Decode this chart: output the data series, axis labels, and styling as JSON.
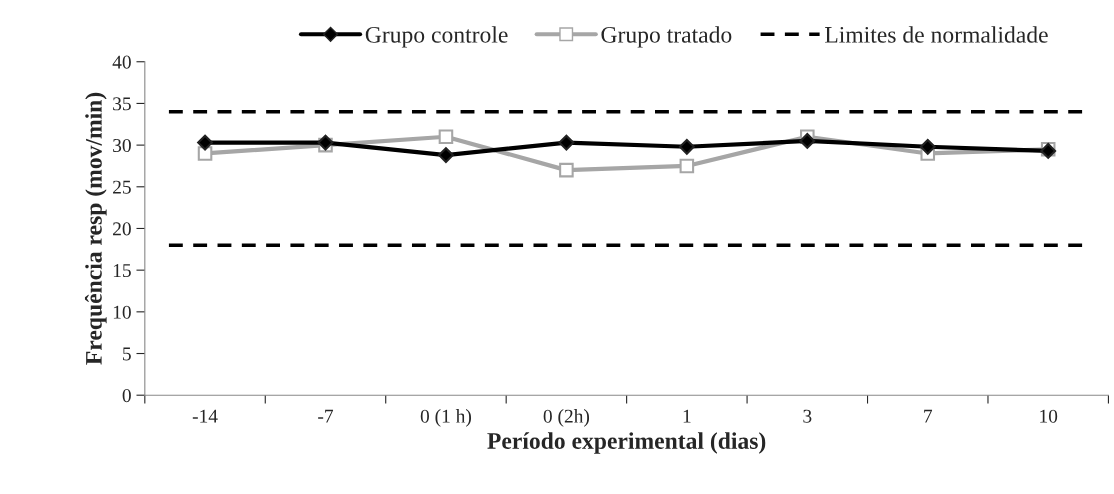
{
  "chart_data": {
    "type": "line",
    "xlabel": "Período experimental (dias)",
    "ylabel": "Frequência resp (mov/min)",
    "categories": [
      "-14",
      "-7",
      "0 (1 h)",
      "0 (2h)",
      "1",
      "3",
      "7",
      "10"
    ],
    "series": [
      {
        "name": "Grupo controle",
        "color": "#000000",
        "marker": "diamond",
        "values": [
          30.3,
          30.3,
          28.8,
          30.3,
          29.8,
          30.5,
          29.8,
          29.3
        ]
      },
      {
        "name": "Grupo tratado",
        "color": "#a6a6a6",
        "marker": "square",
        "values": [
          29,
          30,
          31,
          27,
          27.5,
          31,
          29,
          29.5
        ]
      }
    ],
    "ref_lines": [
      {
        "axis": "y",
        "value": 34,
        "label": "Limites de normalidade",
        "color": "#000000",
        "line_style": "dashed"
      },
      {
        "axis": "y",
        "value": 18,
        "color": "#000000",
        "line_style": "dashed"
      }
    ],
    "ylim": [
      0,
      40
    ],
    "yticks": [
      0,
      5,
      10,
      15,
      20,
      25,
      30,
      35,
      40
    ],
    "grid": false,
    "legend": "top"
  }
}
